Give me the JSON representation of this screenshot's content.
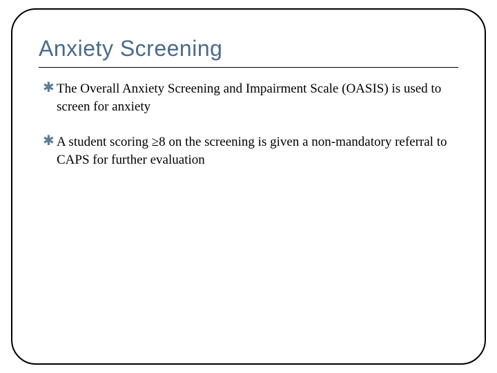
{
  "slide": {
    "title": "Anxiety Screening",
    "title_color": "#4a6a8a",
    "title_fontsize": 32,
    "body_fontsize": 19,
    "bullet_color": "#5b7b99",
    "bullet_glyph": "✱",
    "frame_border_color": "#000000",
    "frame_border_radius": 36,
    "bullets": [
      "The Overall Anxiety Screening and Impairment Scale (OASIS) is used to screen for anxiety",
      "A student scoring ≥8 on the screening is given a non-mandatory referral to CAPS for further evaluation"
    ]
  }
}
